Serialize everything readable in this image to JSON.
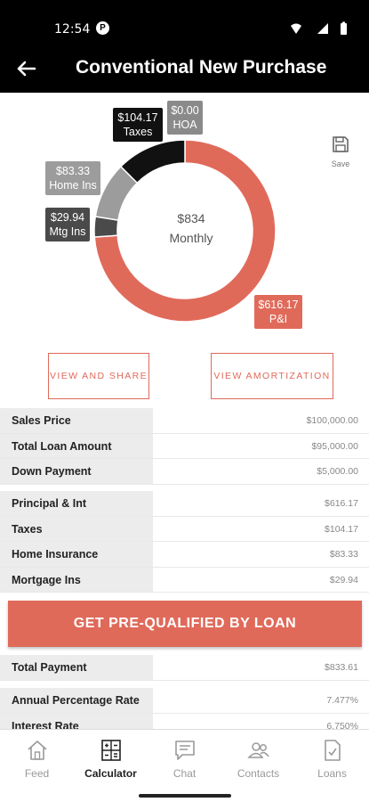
{
  "status_bar": {
    "time": "12:54",
    "notification_badge": "P"
  },
  "header": {
    "title": "Conventional New Purchase"
  },
  "chart_data": {
    "type": "pie",
    "center_value": "$834",
    "center_label": "Monthly",
    "slices": [
      {
        "name": "P&I",
        "value": 616.17,
        "label": "$616.17",
        "color": "#e06a5a"
      },
      {
        "name": "Mtg Ins",
        "value": 29.94,
        "label": "$29.94",
        "color": "#4a4a4a"
      },
      {
        "name": "Home Ins",
        "value": 83.33,
        "label": "$83.33",
        "color": "#9c9c9c"
      },
      {
        "name": "Taxes",
        "value": 104.17,
        "label": "$104.17",
        "color": "#111111"
      },
      {
        "name": "HOA",
        "value": 0.0,
        "label": "$0.00",
        "color": "#8a8a8a"
      }
    ]
  },
  "save": {
    "label": "Save",
    "icon": "save-icon"
  },
  "actions": {
    "view_share": "VIEW AND SHARE",
    "view_amortization": "VIEW AMORTIZATION"
  },
  "loan_summary": [
    {
      "label": "Sales Price",
      "value": "$100,000.00"
    },
    {
      "label": "Total Loan Amount",
      "value": "$95,000.00"
    },
    {
      "label": "Down Payment",
      "value": "$5,000.00"
    }
  ],
  "payment_breakdown": [
    {
      "label": "Principal & Int",
      "value": "$616.17"
    },
    {
      "label": "Taxes",
      "value": "$104.17"
    },
    {
      "label": "Home Insurance",
      "value": "$83.33"
    },
    {
      "label": "Mortgage Ins",
      "value": "$29.94"
    }
  ],
  "cta": {
    "label": "GET PRE-QUALIFIED BY LOAN"
  },
  "totals": [
    {
      "label": "Total Payment",
      "value": "$833.61"
    }
  ],
  "rates": [
    {
      "label": "Annual Percentage Rate",
      "value": "7.477%"
    },
    {
      "label": "Interest Rate",
      "value": "6.750%"
    }
  ],
  "nav": [
    {
      "label": "Feed",
      "icon": "home-icon"
    },
    {
      "label": "Calculator",
      "icon": "calculator-icon",
      "active": true
    },
    {
      "label": "Chat",
      "icon": "chat-icon"
    },
    {
      "label": "Contacts",
      "icon": "contacts-icon"
    },
    {
      "label": "Loans",
      "icon": "document-check-icon"
    }
  ]
}
